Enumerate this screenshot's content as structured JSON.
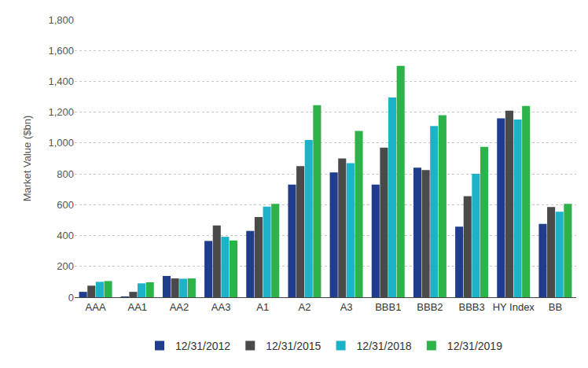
{
  "chart_data": {
    "type": "bar",
    "y_label": "Market Value ($bn)",
    "categories": [
      "AAA",
      "AA1",
      "AA2",
      "AA3",
      "A1",
      "A2",
      "A3",
      "BBB1",
      "BBB2",
      "BBB3",
      "HY Index",
      "BB"
    ],
    "series": [
      {
        "name": "12/31/2012",
        "color": "#1f3d8c",
        "values": [
          35,
          2,
          138,
          365,
          430,
          730,
          810,
          730,
          840,
          458,
          1160,
          475
        ]
      },
      {
        "name": "12/31/2015",
        "color": "#4a4a4a",
        "values": [
          75,
          35,
          122,
          465,
          520,
          850,
          900,
          970,
          825,
          655,
          1210,
          585
        ]
      },
      {
        "name": "12/31/2018",
        "color": "#1cb3c8",
        "values": [
          100,
          90,
          120,
          392,
          588,
          1020,
          870,
          1295,
          1110,
          800,
          1152,
          555
        ]
      },
      {
        "name": "12/31/2019",
        "color": "#2db34a",
        "values": [
          105,
          97,
          122,
          368,
          605,
          1245,
          1078,
          1500,
          1180,
          975,
          1240,
          605
        ]
      }
    ],
    "ylim": [
      0,
      1800
    ],
    "yticks": [
      0,
      200,
      400,
      600,
      800,
      {
        "value": 1000,
        "label": "1,000"
      },
      {
        "value": 1200,
        "label": "1,200"
      },
      {
        "value": 1400,
        "label": "1,400"
      },
      {
        "value": 1600,
        "label": "1,600"
      },
      {
        "value": 1800,
        "label": "1,800"
      }
    ],
    "grid": true,
    "legend": "bottom"
  }
}
